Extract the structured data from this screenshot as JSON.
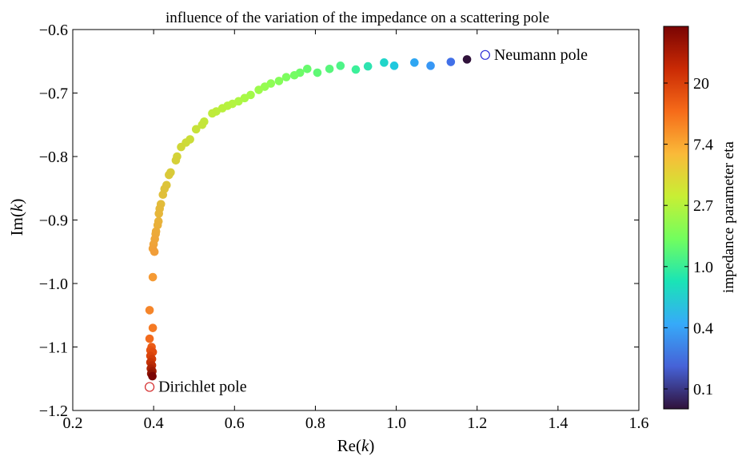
{
  "chart_data": {
    "type": "scatter",
    "title": "influence of the variation of the impedance on a scattering pole",
    "xlabel_main": "Re(",
    "xlabel_var": "k",
    "xlabel_close": ")",
    "ylabel_main": "Im(",
    "ylabel_var": "k",
    "ylabel_close": ")",
    "xlim": [
      0.2,
      1.6
    ],
    "ylim": [
      -1.2,
      -0.6
    ],
    "xticks": [
      "0.2",
      "0.4",
      "0.6",
      "0.8",
      "1.0",
      "1.2",
      "1.4",
      "1.6"
    ],
    "yticks": [
      "−0.6",
      "−0.7",
      "−0.8",
      "−0.9",
      "−1.0",
      "−1.1",
      "−1.2"
    ],
    "grid": false,
    "colorbar": {
      "label": "impedance parameter eta",
      "ticks": [
        "20",
        "7.4",
        "2.7",
        "1.0",
        "0.4",
        "0.1"
      ],
      "colormap": [
        "#30123b",
        "#4662d7",
        "#36aaf9",
        "#1ae4b6",
        "#72fe5e",
        "#c8ef34",
        "#faba39",
        "#f66b19",
        "#ca2a04",
        "#7a0403"
      ]
    },
    "points": [
      {
        "x": 1.175,
        "y": -0.647,
        "color": "#30123b"
      },
      {
        "x": 1.135,
        "y": -0.651,
        "color": "#4170e8"
      },
      {
        "x": 1.085,
        "y": -0.657,
        "color": "#3797f5"
      },
      {
        "x": 1.045,
        "y": -0.652,
        "color": "#2ea6f2"
      },
      {
        "x": 0.995,
        "y": -0.657,
        "color": "#1fc8de"
      },
      {
        "x": 0.97,
        "y": -0.652,
        "color": "#20d5c9"
      },
      {
        "x": 0.93,
        "y": -0.658,
        "color": "#2ee3b0"
      },
      {
        "x": 0.9,
        "y": -0.663,
        "color": "#3cf09a"
      },
      {
        "x": 0.862,
        "y": -0.657,
        "color": "#4ef487"
      },
      {
        "x": 0.835,
        "y": -0.662,
        "color": "#58f67c"
      },
      {
        "x": 0.805,
        "y": -0.668,
        "color": "#5ff875"
      },
      {
        "x": 0.78,
        "y": -0.662,
        "color": "#67fa6d"
      },
      {
        "x": 0.762,
        "y": -0.668,
        "color": "#6dfb68"
      },
      {
        "x": 0.748,
        "y": -0.672,
        "color": "#74fc63"
      },
      {
        "x": 0.728,
        "y": -0.675,
        "color": "#7cfd5e"
      },
      {
        "x": 0.71,
        "y": -0.681,
        "color": "#84fd59"
      },
      {
        "x": 0.69,
        "y": -0.685,
        "color": "#8efd54"
      },
      {
        "x": 0.675,
        "y": -0.69,
        "color": "#95fc50"
      },
      {
        "x": 0.66,
        "y": -0.695,
        "color": "#9cfb4c"
      },
      {
        "x": 0.64,
        "y": -0.703,
        "color": "#a2f949"
      },
      {
        "x": 0.625,
        "y": -0.708,
        "color": "#a8f846"
      },
      {
        "x": 0.61,
        "y": -0.713,
        "color": "#aef643"
      },
      {
        "x": 0.595,
        "y": -0.717,
        "color": "#b3f441"
      },
      {
        "x": 0.583,
        "y": -0.72,
        "color": "#b6f23f"
      },
      {
        "x": 0.57,
        "y": -0.724,
        "color": "#b9f03d"
      },
      {
        "x": 0.555,
        "y": -0.729,
        "color": "#bced3c"
      },
      {
        "x": 0.545,
        "y": -0.732,
        "color": "#beeb3b"
      },
      {
        "x": 0.525,
        "y": -0.745,
        "color": "#c2e73a"
      },
      {
        "x": 0.52,
        "y": -0.75,
        "color": "#c4e53a"
      },
      {
        "x": 0.505,
        "y": -0.757,
        "color": "#c7e239"
      },
      {
        "x": 0.49,
        "y": -0.773,
        "color": "#cbdd38"
      },
      {
        "x": 0.48,
        "y": -0.778,
        "color": "#cddb38"
      },
      {
        "x": 0.468,
        "y": -0.785,
        "color": "#d0d738"
      },
      {
        "x": 0.458,
        "y": -0.8,
        "color": "#d3d338"
      },
      {
        "x": 0.455,
        "y": -0.806,
        "color": "#d5d038"
      },
      {
        "x": 0.442,
        "y": -0.825,
        "color": "#d8cc38"
      },
      {
        "x": 0.438,
        "y": -0.829,
        "color": "#dac939"
      },
      {
        "x": 0.432,
        "y": -0.845,
        "color": "#dcc539"
      },
      {
        "x": 0.427,
        "y": -0.851,
        "color": "#dec239"
      },
      {
        "x": 0.423,
        "y": -0.86,
        "color": "#e0bf39"
      },
      {
        "x": 0.418,
        "y": -0.875,
        "color": "#e2bc3a"
      },
      {
        "x": 0.415,
        "y": -0.882,
        "color": "#e4b93a"
      },
      {
        "x": 0.413,
        "y": -0.89,
        "color": "#e6b63a"
      },
      {
        "x": 0.412,
        "y": -0.902,
        "color": "#e8b33a"
      },
      {
        "x": 0.41,
        "y": -0.908,
        "color": "#e9b03a"
      },
      {
        "x": 0.406,
        "y": -0.918,
        "color": "#ebad3a"
      },
      {
        "x": 0.405,
        "y": -0.922,
        "color": "#ecaa3a"
      },
      {
        "x": 0.403,
        "y": -0.93,
        "color": "#eea73a"
      },
      {
        "x": 0.4,
        "y": -0.938,
        "color": "#efa43a"
      },
      {
        "x": 0.398,
        "y": -0.945,
        "color": "#f0a139"
      },
      {
        "x": 0.402,
        "y": -0.95,
        "color": "#f19e39"
      },
      {
        "x": 0.398,
        "y": -0.99,
        "color": "#f59a34"
      },
      {
        "x": 0.39,
        "y": -1.042,
        "color": "#f5852a"
      },
      {
        "x": 0.398,
        "y": -1.07,
        "color": "#f57a24"
      },
      {
        "x": 0.39,
        "y": -1.087,
        "color": "#f26a1d"
      },
      {
        "x": 0.395,
        "y": -1.1,
        "color": "#ec5c16"
      },
      {
        "x": 0.392,
        "y": -1.105,
        "color": "#e65312"
      },
      {
        "x": 0.398,
        "y": -1.108,
        "color": "#e24c10"
      },
      {
        "x": 0.392,
        "y": -1.114,
        "color": "#da440c"
      },
      {
        "x": 0.396,
        "y": -1.119,
        "color": "#d23c09"
      },
      {
        "x": 0.392,
        "y": -1.124,
        "color": "#c73407"
      },
      {
        "x": 0.396,
        "y": -1.129,
        "color": "#bb2c06"
      },
      {
        "x": 0.393,
        "y": -1.134,
        "color": "#ad2405"
      },
      {
        "x": 0.397,
        "y": -1.138,
        "color": "#9f1c04"
      },
      {
        "x": 0.394,
        "y": -1.142,
        "color": "#901503"
      },
      {
        "x": 0.397,
        "y": -1.146,
        "color": "#7a0403"
      }
    ],
    "annotations": [
      {
        "label": "Neumann pole",
        "x": 1.22,
        "y": -0.64,
        "color": "#2a2ad6"
      },
      {
        "label": "Dirichlet pole",
        "x": 0.39,
        "y": -1.163,
        "color": "#d42a2a"
      }
    ]
  }
}
